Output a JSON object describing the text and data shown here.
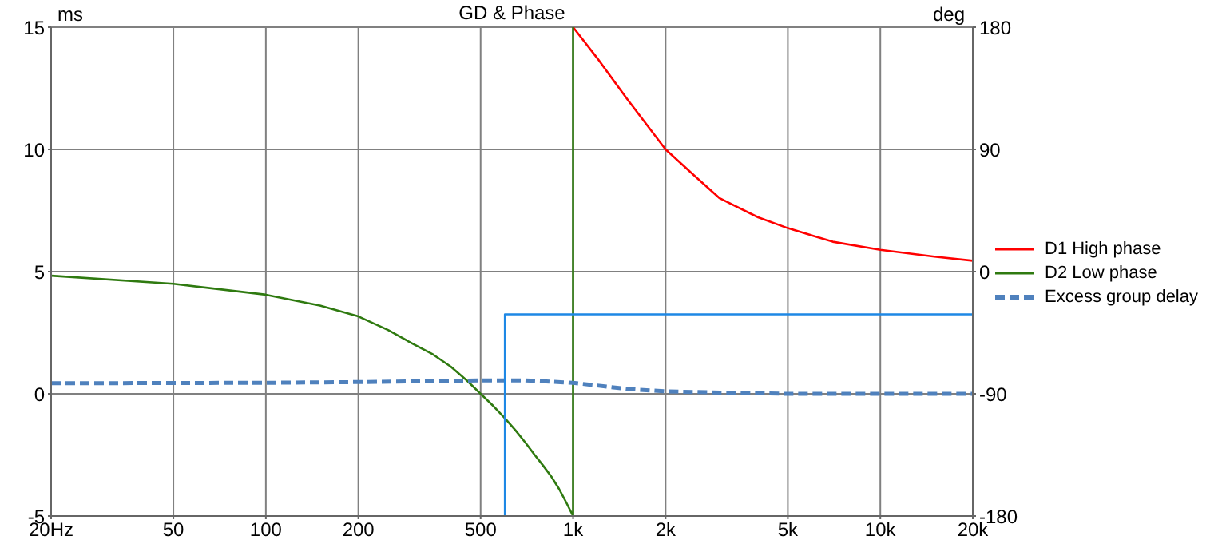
{
  "chart_data": {
    "type": "line",
    "title": "GD & Phase",
    "ylabel": "ms",
    "y2label": "deg",
    "xlim": [
      20,
      20000
    ],
    "xticks": [
      {
        "value": 20,
        "label": "20Hz"
      },
      50,
      100,
      200,
      500,
      {
        "value": 1000,
        "label": "1k"
      },
      {
        "value": 2000,
        "label": "2k"
      },
      {
        "value": 5000,
        "label": "5k"
      },
      {
        "value": 10000,
        "label": "10k"
      },
      {
        "value": 20000,
        "label": "20k"
      }
    ],
    "log": "x",
    "ylim": [
      -5,
      15
    ],
    "yticks": [
      -5,
      0,
      5,
      10,
      15
    ],
    "y2lim": [
      -180,
      180
    ],
    "y2ticks": [
      -180,
      -90,
      0,
      90,
      180
    ],
    "grid": true,
    "legend": "right",
    "marker": "none",
    "series": [
      {
        "name": "D1 High phase",
        "color": "#ff0000",
        "axis": "y2",
        "x": [
          1000,
          1200,
          1500,
          2000,
          2500,
          3000,
          4000,
          5000,
          7000,
          10000,
          15000,
          20000
        ],
        "values": [
          180,
          157,
          127,
          90,
          70,
          54,
          40,
          32,
          22,
          16,
          11,
          8
        ]
      },
      {
        "name": "D2 Low phase",
        "color": "#2f7a10",
        "axis": "y2",
        "x": [
          20,
          50,
          100,
          150,
          200,
          250,
          300,
          350,
          400,
          450,
          500,
          550,
          600,
          650,
          700,
          750,
          800,
          850,
          900,
          950,
          1000,
          1000
        ],
        "values": [
          -3,
          -9,
          -17,
          -25,
          -33,
          -43,
          -53,
          -61,
          -70,
          -80,
          -90,
          -99,
          -108,
          -117,
          -126,
          -135,
          -143,
          -151,
          -160,
          -170,
          -180,
          180
        ]
      },
      {
        "name": "Excess group delay",
        "color": "#4f81bd",
        "line_style": "dashed",
        "x": [
          20,
          100,
          200,
          500,
          700,
          1000,
          1500,
          2000,
          3000,
          5000,
          20000
        ],
        "values": [
          0.43,
          0.45,
          0.48,
          0.55,
          0.55,
          0.45,
          0.2,
          0.1,
          0.05,
          0,
          0
        ]
      },
      {
        "color": "#1e88e5",
        "x": [
          600,
          600,
          20000
        ],
        "values": [
          -5,
          3.25,
          3.25
        ]
      }
    ]
  }
}
